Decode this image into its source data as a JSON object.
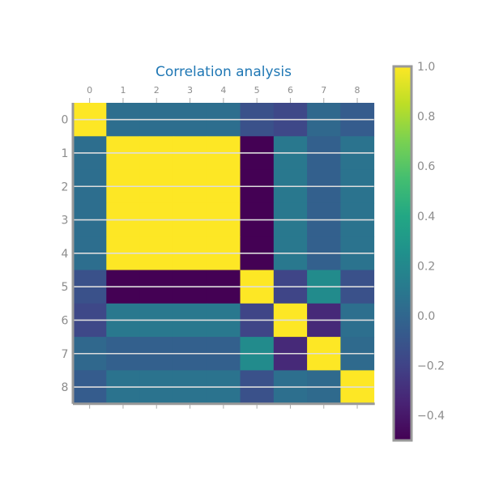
{
  "chart_data": {
    "type": "heatmap",
    "title": "Correlation analysis",
    "x_tick_labels": [
      "0",
      "1",
      "2",
      "3",
      "4",
      "5",
      "6",
      "7",
      "8"
    ],
    "y_tick_labels": [
      "0",
      "1",
      "2",
      "3",
      "4",
      "5",
      "6",
      "7",
      "8"
    ],
    "values": [
      [
        1.0,
        0.04,
        0.04,
        0.04,
        0.04,
        -0.12,
        -0.17,
        0.01,
        -0.06
      ],
      [
        0.04,
        1.0,
        1.0,
        1.0,
        1.0,
        -0.5,
        0.1,
        -0.04,
        0.07
      ],
      [
        0.04,
        1.0,
        1.0,
        1.0,
        1.0,
        -0.5,
        0.1,
        -0.04,
        0.07
      ],
      [
        0.04,
        1.0,
        1.0,
        1.0,
        1.0,
        -0.5,
        0.1,
        -0.04,
        0.07
      ],
      [
        0.04,
        1.0,
        1.0,
        1.0,
        1.0,
        -0.5,
        0.1,
        -0.04,
        0.07
      ],
      [
        -0.12,
        -0.5,
        -0.5,
        -0.5,
        -0.5,
        1.0,
        -0.19,
        0.22,
        -0.12
      ],
      [
        -0.17,
        0.1,
        0.1,
        0.1,
        0.1,
        -0.19,
        1.0,
        -0.32,
        0.05
      ],
      [
        0.01,
        -0.04,
        -0.04,
        -0.04,
        -0.04,
        0.22,
        -0.32,
        1.0,
        0.02
      ],
      [
        -0.06,
        0.07,
        0.07,
        0.07,
        0.07,
        -0.12,
        0.05,
        0.02,
        1.0
      ]
    ],
    "colorscale": "viridis",
    "color_range": [
      -0.5,
      1.0
    ],
    "colorbar_ticks": [
      {
        "value": 1.0,
        "label": "1.0"
      },
      {
        "value": 0.8,
        "label": "0.8"
      },
      {
        "value": 0.6,
        "label": "0.6"
      },
      {
        "value": 0.4,
        "label": "0.4"
      },
      {
        "value": 0.2,
        "label": "0.2"
      },
      {
        "value": 0.0,
        "label": "0.0"
      },
      {
        "value": -0.2,
        "label": "−0.2"
      },
      {
        "value": -0.4,
        "label": "−0.4"
      }
    ],
    "x_ticks_position": "top",
    "grid": true,
    "colors": {
      "title": "#1f77b4",
      "tick_text": "#8c8c8c",
      "spine": "#999999",
      "grid": "#dddddd"
    }
  }
}
